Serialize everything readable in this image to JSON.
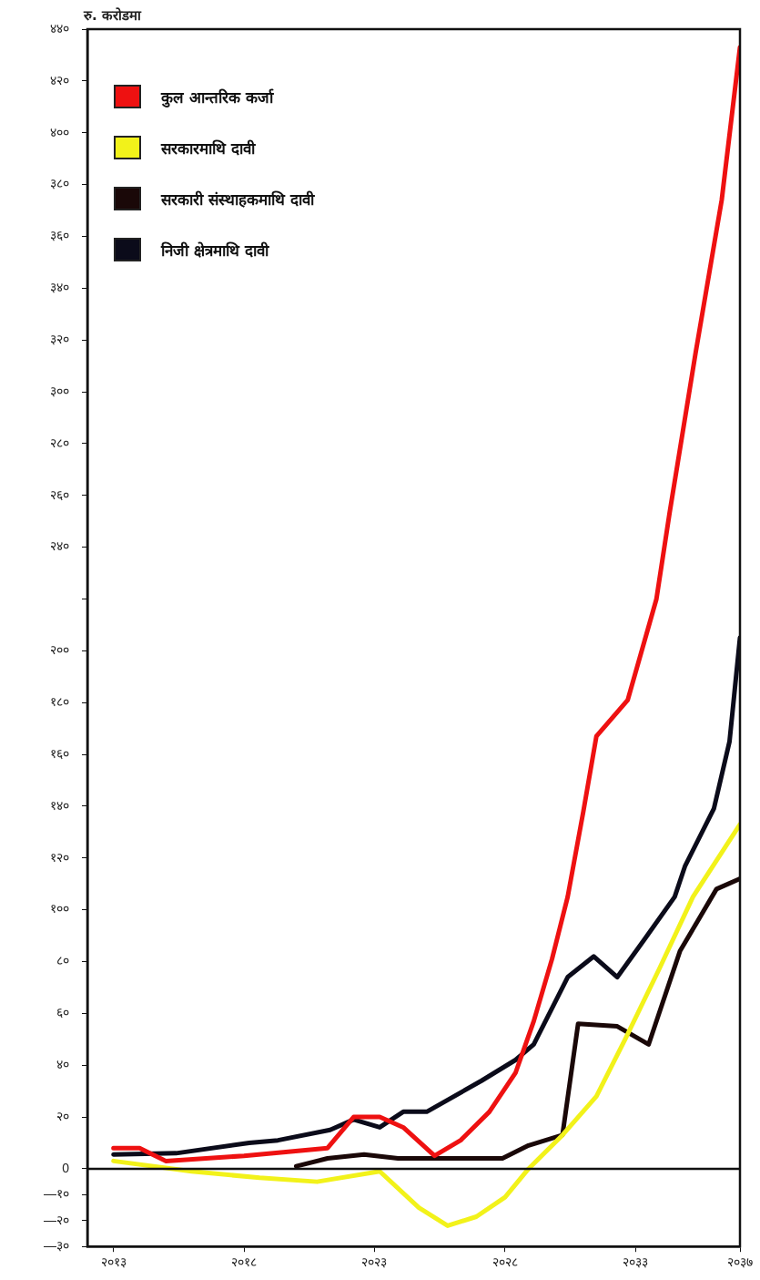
{
  "chart_data": {
    "type": "line",
    "ylabel": "रु. करोडमा",
    "xlim": [
      2012,
      2037
    ],
    "xticks": [
      {
        "value": 2013,
        "label": "२०१३"
      },
      {
        "value": 2018,
        "label": "२०१८"
      },
      {
        "value": 2023,
        "label": "२०२३"
      },
      {
        "value": 2028,
        "label": "२०२८"
      },
      {
        "value": 2033,
        "label": "२०३३"
      },
      {
        "value": 2037,
        "label": "२०३७"
      }
    ],
    "ylim": [
      -30,
      440
    ],
    "yticks": [
      {
        "value": -30,
        "label": "—३०"
      },
      {
        "value": -20,
        "label": "—२०"
      },
      {
        "value": -10,
        "label": "—१०"
      },
      0,
      {
        "value": 20,
        "label": "२०"
      },
      {
        "value": 40,
        "label": "४०"
      },
      {
        "value": 60,
        "label": "६०"
      },
      {
        "value": 80,
        "label": "८०"
      },
      {
        "value": 100,
        "label": "१००"
      },
      {
        "value": 120,
        "label": "१२०"
      },
      {
        "value": 140,
        "label": "१४०"
      },
      {
        "value": 160,
        "label": "१६०"
      },
      {
        "value": 180,
        "label": "१८०"
      },
      {
        "value": 200,
        "label": "२००"
      },
      {
        "value": 220,
        "label": null
      },
      {
        "value": 240,
        "label": "२४०"
      },
      {
        "value": 260,
        "label": "२६०"
      },
      {
        "value": 280,
        "label": "२८०"
      },
      {
        "value": 300,
        "label": "३००"
      },
      {
        "value": 320,
        "label": "३२०"
      },
      {
        "value": 340,
        "label": "३४०"
      },
      {
        "value": 360,
        "label": "३६०"
      },
      {
        "value": 380,
        "label": "३८०"
      },
      {
        "value": 400,
        "label": "४००"
      },
      {
        "value": 420,
        "label": "४२०"
      },
      {
        "value": 440,
        "label": "४४०"
      }
    ],
    "grid": false,
    "legend": "top left",
    "marker": "none",
    "line_style": "solid",
    "ref_lines": [
      {
        "axis": "y",
        "value": 0
      }
    ],
    "series": [
      {
        "name": "कुल आन्तरिक कर्जा",
        "color": "#ee1111",
        "x": [
          2013,
          2014,
          2015,
          2018,
          2021.2,
          2022.2,
          2023.2,
          2024.1,
          2025.3,
          2026.3,
          2027.4,
          2028.4,
          2029.1,
          2029.8,
          2030.4,
          2031,
          2031.5,
          2032.7,
          2033.8,
          2034.3,
          2035.3,
          2036.3,
          2037
        ],
        "values": [
          8,
          8,
          3,
          5,
          8,
          20,
          20,
          16,
          5,
          11,
          22,
          37,
          57,
          81,
          105,
          138,
          167,
          181,
          220,
          253,
          315,
          374,
          433
        ]
      },
      {
        "name": "सरकारमाथि दावी",
        "color": "#f2f21a",
        "x": [
          2013,
          2016,
          2018.6,
          2020.8,
          2023.2,
          2024.7,
          2025.8,
          2026.9,
          2028,
          2028.9,
          2030.2,
          2031.5,
          2032.6,
          2033.9,
          2035.2,
          2037
        ],
        "values": [
          3,
          -1,
          -3.5,
          -5,
          -1,
          -15,
          -22,
          -18.5,
          -11,
          0,
          13,
          28,
          50,
          77,
          105,
          133
        ]
      },
      {
        "name": "सरकारी संस्थाहकमाथि दावी",
        "color": "#1a0808",
        "x": [
          2020,
          2021.2,
          2022.6,
          2023.9,
          2027.9,
          2028.9,
          2030.2,
          2030.8,
          2032.3,
          2033.5,
          2034.7,
          2036.1,
          2037
        ],
        "values": [
          1,
          4,
          5.5,
          4,
          4,
          9,
          13,
          56,
          55,
          48,
          84,
          108,
          112
        ]
      },
      {
        "name": "निजी क्षेत्रमाथि दावी",
        "color": "#0b0b1a",
        "x": [
          2013,
          2015.4,
          2018.2,
          2019.3,
          2021.3,
          2022.2,
          2023.2,
          2024.1,
          2025,
          2027.1,
          2028.4,
          2029.1,
          2030.4,
          2031.4,
          2032.3,
          2033.3,
          2034.5,
          2034.9,
          2036,
          2036.6,
          2037
        ],
        "values": [
          5.5,
          6,
          10,
          11,
          15,
          19,
          16,
          22,
          22,
          34,
          42,
          48,
          74,
          82,
          74,
          88,
          105,
          117,
          139,
          165,
          205
        ]
      }
    ]
  }
}
